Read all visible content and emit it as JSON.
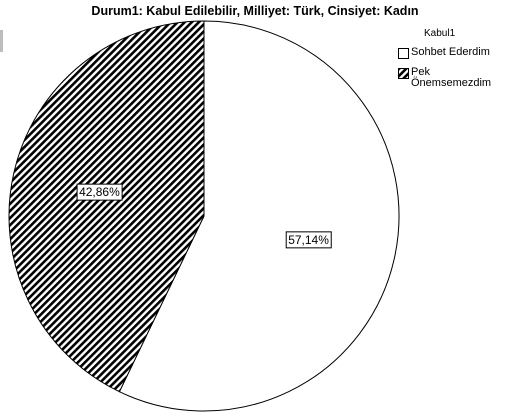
{
  "chart_data": {
    "type": "pie",
    "title": "Durum1: Kabul Edilebilir, Milliyet: Türk, Cinsiyet: Kadın",
    "legend_title": "Kabul1",
    "legend_position": "top-right",
    "slices": [
      {
        "label": "Sohbet Ederdim",
        "value": 57.14,
        "data_label": "57,14%",
        "fill": "#ffffff",
        "pattern": "none"
      },
      {
        "label": "Pek Önemsemezdim",
        "value": 42.86,
        "data_label": "42,86%",
        "fill": "#000000",
        "pattern": "diagonal-hatch"
      }
    ]
  }
}
